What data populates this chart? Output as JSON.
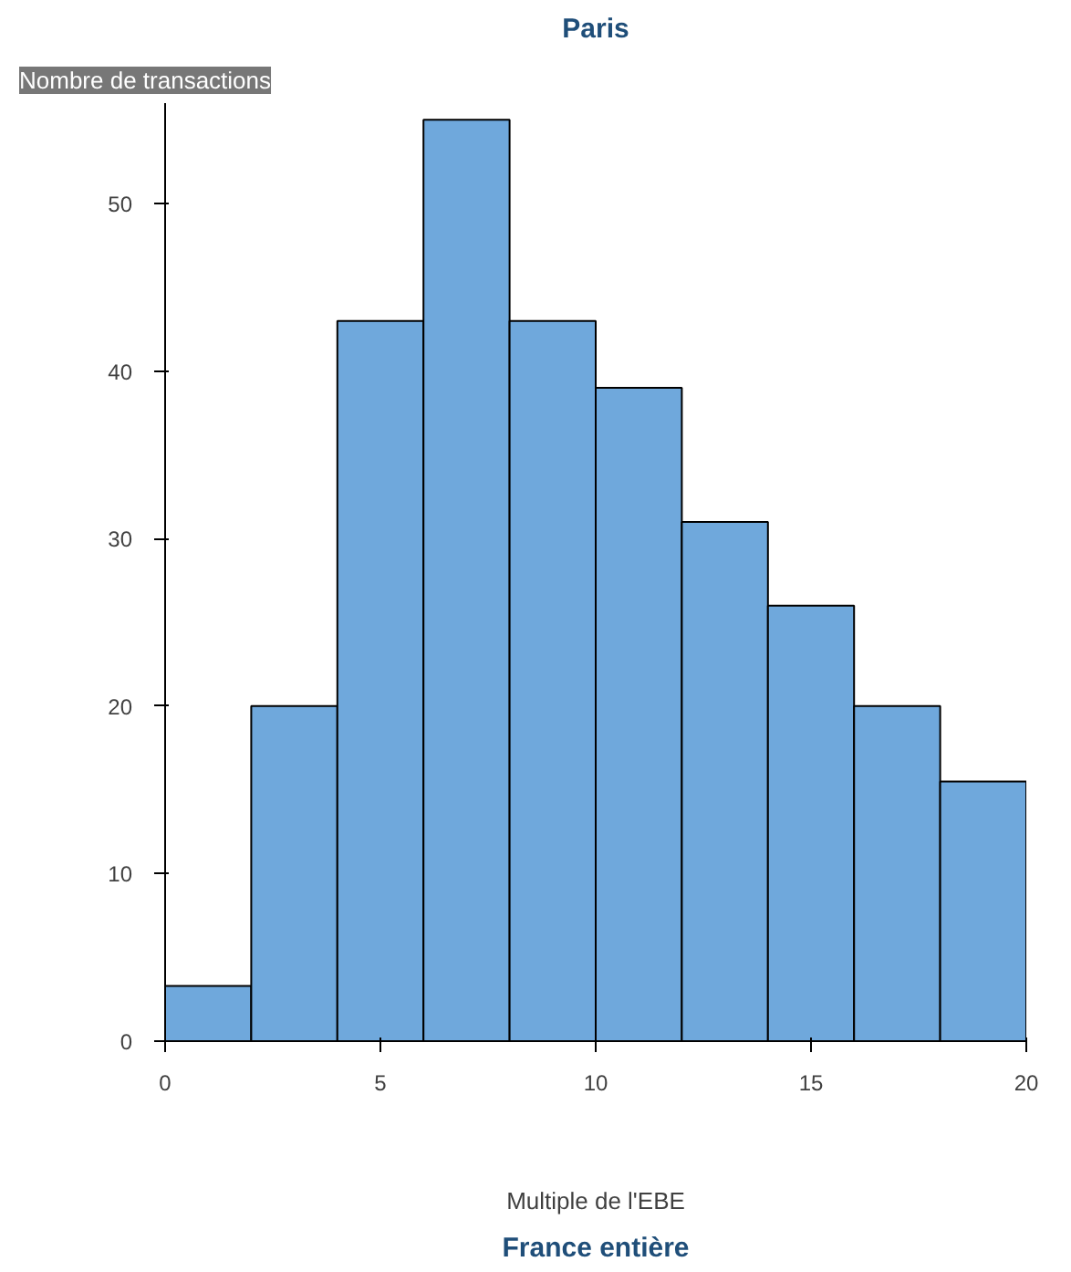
{
  "chart_data": {
    "type": "histogram",
    "title": "Paris",
    "xlabel": "Multiple de l'EBE",
    "ylabel": "Nombre de transactions",
    "bins": [
      0,
      2,
      4,
      6,
      8,
      10,
      12,
      14,
      16,
      18,
      20
    ],
    "values": [
      3.3,
      20,
      43,
      55,
      43,
      39,
      31,
      26,
      20,
      15.5
    ],
    "color": "#6fa8dc",
    "xlim": [
      0,
      20
    ],
    "xticks": [
      0,
      5,
      10,
      15,
      20
    ],
    "ylim": [
      0,
      56
    ],
    "yticks": [
      0,
      10,
      20,
      30,
      40,
      50
    ],
    "grid": false,
    "annotations": [
      "France entière"
    ]
  }
}
